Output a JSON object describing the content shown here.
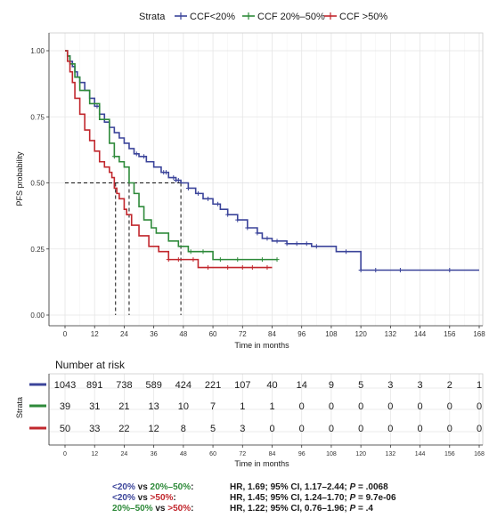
{
  "colors": {
    "low": "#3b449a",
    "mid": "#2e8a3a",
    "high": "#c1272d",
    "grid": "#e5e5e5",
    "axis": "#333333"
  },
  "chart_data": [
    {
      "type": "line",
      "subtype": "kaplan-meier",
      "legend_title": "Strata",
      "legend_position": "top",
      "xlabel": "Time in months",
      "ylabel": "PFS probability",
      "xlim": [
        0,
        168
      ],
      "ylim": [
        0,
        1
      ],
      "x_ticks": [
        0,
        12,
        24,
        36,
        48,
        60,
        72,
        84,
        96,
        108,
        120,
        132,
        144,
        156,
        168
      ],
      "x_tick_labels": [
        "0",
        "12",
        "24",
        "36",
        "48",
        "60",
        "72",
        "84",
        "96",
        "108",
        "120",
        "132",
        "144",
        "156",
        "168"
      ],
      "y_ticks": [
        0,
        0.25,
        0.5,
        0.75,
        1.0
      ],
      "y_tick_labels": [
        "0.00",
        "0.25",
        "0.50",
        "0.75",
        "1.00"
      ],
      "grid": true,
      "median_line_y": 0.5,
      "medians": [
        20.5,
        26,
        47
      ],
      "series": [
        {
          "name": "CCF<20%",
          "color": "#3b449a",
          "x": [
            0,
            1,
            2,
            3,
            4,
            5,
            6,
            8,
            10,
            12,
            14,
            16,
            18,
            20,
            22,
            24,
            26,
            28,
            30,
            33,
            36,
            39,
            42,
            45,
            47,
            50,
            53,
            56,
            60,
            63,
            66,
            70,
            74,
            78,
            80,
            84,
            90,
            100,
            110,
            115,
            120,
            130,
            150,
            168
          ],
          "y": [
            1.0,
            0.98,
            0.96,
            0.94,
            0.92,
            0.9,
            0.88,
            0.85,
            0.82,
            0.79,
            0.76,
            0.73,
            0.71,
            0.69,
            0.67,
            0.65,
            0.63,
            0.61,
            0.6,
            0.58,
            0.56,
            0.54,
            0.52,
            0.51,
            0.5,
            0.48,
            0.46,
            0.44,
            0.42,
            0.4,
            0.38,
            0.36,
            0.33,
            0.31,
            0.29,
            0.28,
            0.27,
            0.26,
            0.24,
            0.24,
            0.17,
            0.17,
            0.17,
            0.17
          ],
          "censor_x": [
            13,
            29,
            32,
            40,
            41,
            44,
            45,
            46,
            50,
            54,
            58,
            62,
            66,
            70,
            74,
            78,
            82,
            86,
            90,
            94,
            98,
            102,
            114,
            120,
            126,
            136,
            156
          ]
        },
        {
          "name": "CCF 20%–50%",
          "color": "#2e8a3a",
          "x": [
            0,
            1,
            2,
            4,
            6,
            10,
            14,
            18,
            20,
            22,
            24,
            26,
            28,
            30,
            32,
            35,
            37,
            40,
            42,
            46,
            50,
            56,
            60,
            86
          ],
          "y": [
            1.0,
            0.98,
            0.95,
            0.9,
            0.85,
            0.8,
            0.74,
            0.65,
            0.6,
            0.58,
            0.56,
            0.5,
            0.46,
            0.41,
            0.36,
            0.33,
            0.31,
            0.31,
            0.28,
            0.26,
            0.24,
            0.24,
            0.21,
            0.21
          ],
          "censor_x": [
            20,
            51,
            56,
            63,
            70,
            80,
            86
          ]
        },
        {
          "name": "CCF >50%",
          "color": "#c1272d",
          "x": [
            0,
            1,
            2,
            3,
            4,
            6,
            8,
            10,
            12,
            14,
            16,
            18,
            19,
            20,
            21,
            22,
            24,
            25,
            27,
            30,
            34,
            38,
            42,
            48,
            54,
            84
          ],
          "y": [
            1.0,
            0.96,
            0.92,
            0.88,
            0.82,
            0.76,
            0.7,
            0.66,
            0.62,
            0.58,
            0.56,
            0.54,
            0.52,
            0.48,
            0.46,
            0.44,
            0.4,
            0.38,
            0.34,
            0.3,
            0.26,
            0.24,
            0.21,
            0.21,
            0.18,
            0.18
          ],
          "censor_x": [
            42,
            46,
            52,
            58,
            66,
            72,
            76,
            82
          ]
        }
      ]
    },
    {
      "type": "table",
      "title": "Number at risk",
      "ylabel": "Strata",
      "xlabel": "Time in months",
      "x_ticks": [
        0,
        12,
        24,
        36,
        48,
        60,
        72,
        84,
        96,
        108,
        120,
        132,
        144,
        156,
        168
      ],
      "x_tick_labels": [
        "0",
        "12",
        "24",
        "36",
        "48",
        "60",
        "72",
        "84",
        "96",
        "108",
        "120",
        "132",
        "144",
        "156",
        "168"
      ],
      "rows": [
        {
          "name": "CCF<20%",
          "color": "#3b449a",
          "values": [
            "1043",
            "891",
            "738",
            "589",
            "424",
            "221",
            "107",
            "40",
            "14",
            "9",
            "5",
            "3",
            "3",
            "2",
            "1"
          ]
        },
        {
          "name": "CCF 20%–50%",
          "color": "#2e8a3a",
          "values": [
            "39",
            "31",
            "21",
            "13",
            "10",
            "7",
            "1",
            "1",
            "0",
            "0",
            "0",
            "0",
            "0",
            "0",
            "0"
          ]
        },
        {
          "name": "CCF >50%",
          "color": "#c1272d",
          "values": [
            "50",
            "33",
            "22",
            "12",
            "8",
            "5",
            "3",
            "0",
            "0",
            "0",
            "0",
            "0",
            "0",
            "0",
            "0"
          ]
        }
      ]
    }
  ],
  "hazard_ratios": [
    {
      "a": "<20%",
      "vs": " vs ",
      "b": "20%–50%",
      "colon": ":",
      "stats": "HR, 1.69; 95% CI, 1.17–2.44; ",
      "p_label": "P",
      "p_value": " = .0068"
    },
    {
      "a": "<20%",
      "vs": " vs ",
      "b": ">50%",
      "colon": ":",
      "stats": "HR, 1.45; 95% CI, 1.24–1.70; ",
      "p_label": "P",
      "p_value": " = 9.7e-06"
    },
    {
      "a": "20%–50%",
      "vs": " vs ",
      "b": ">50%",
      "colon": ":",
      "stats": "HR, 1.22; 95% CI, 0.76–1.96; ",
      "p_label": "P",
      "p_value": " = .4"
    }
  ]
}
